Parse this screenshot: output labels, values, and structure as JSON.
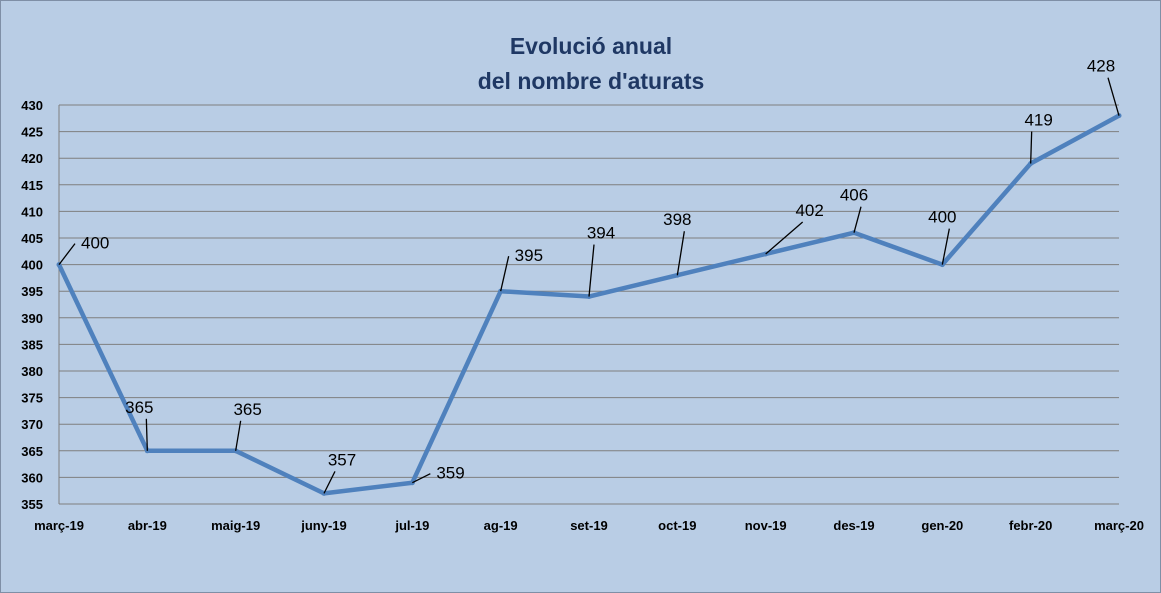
{
  "colors": {
    "background": "#b9cde5",
    "series_line": "#4f81bd",
    "title": "#1f3864",
    "gridline": "#7f7f7f",
    "text": "#000000"
  },
  "chart_data": {
    "type": "line",
    "title_lines": [
      "Evolució anual",
      "del nombre d'aturats"
    ],
    "xlabel": "",
    "ylabel": "",
    "categories": [
      "març-19",
      "abr-19",
      "maig-19",
      "juny-19",
      "jul-19",
      "ag-19",
      "set-19",
      "oct-19",
      "nov-19",
      "des-19",
      "gen-20",
      "febr-20",
      "març-20"
    ],
    "values": [
      400,
      365,
      365,
      357,
      359,
      395,
      394,
      398,
      402,
      406,
      400,
      419,
      428
    ],
    "ylim": [
      355,
      430
    ],
    "ytick_step": 5,
    "grid": true,
    "legend": "none",
    "data_labels": true
  }
}
